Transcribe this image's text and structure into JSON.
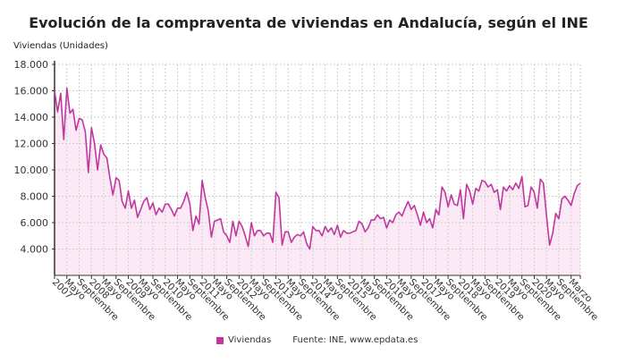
{
  "chart_data": {
    "type": "area",
    "title": "Evolución de la compraventa de viviendas en Andalucía, según el INE",
    "ylabel": "Viviendas (Unidades)",
    "xlabel": "",
    "ylim": [
      2000,
      18000
    ],
    "yticks": [
      "4.000",
      "6.000",
      "8.000",
      "10.000",
      "12.000",
      "14.000",
      "16.000",
      "18.000"
    ],
    "ytick_values": [
      4000,
      6000,
      8000,
      10000,
      12000,
      14000,
      16000,
      18000
    ],
    "x_start": "2007-01",
    "x_end": "2021-03",
    "xtick_labels": [
      "2007",
      "Mayo",
      "Septiembre",
      "2008",
      "Mayo",
      "Septiembre",
      "2009",
      "Mayo",
      "Septiembre",
      "2010",
      "Mayo",
      "Septiembre",
      "2011",
      "Mayo",
      "Septiembre",
      "2012",
      "Mayo",
      "Septiembre",
      "2013",
      "Mayo",
      "Septiembre",
      "2014",
      "Mayo",
      "Septiembre",
      "2015",
      "Mayo",
      "Septiembre",
      "2016",
      "Mayo",
      "Septiembre",
      "2017",
      "Mayo",
      "Septiembre",
      "2018",
      "Mayo",
      "Septiembre",
      "2019",
      "Mayo",
      "Septiembre",
      "2020",
      "Mayo",
      "Septiembre",
      "Marzo"
    ],
    "grid": true,
    "legend_position": "bottom",
    "series": [
      {
        "name": "Viviendas",
        "color": "#c2369f",
        "fill": "#fbe9f6",
        "values": [
          16000,
          14400,
          15800,
          12300,
          16200,
          14300,
          14600,
          13000,
          13900,
          13800,
          12900,
          9800,
          13200,
          12000,
          10000,
          11900,
          11200,
          10900,
          9400,
          8100,
          9400,
          9200,
          7600,
          7100,
          8400,
          7100,
          7700,
          6400,
          7000,
          7600,
          7900,
          7000,
          7500,
          6600,
          7100,
          6800,
          7400,
          7400,
          7000,
          6500,
          7100,
          7100,
          7600,
          8300,
          7400,
          5400,
          6500,
          5900,
          9200,
          7900,
          6900,
          4900,
          6100,
          6200,
          6300,
          5300,
          5000,
          4500,
          6100,
          5000,
          6100,
          5700,
          5000,
          4200,
          6000,
          5000,
          5400,
          5400,
          5000,
          5200,
          5200,
          4500,
          8300,
          7900,
          4300,
          5300,
          5300,
          4500,
          4900,
          5100,
          5000,
          5300,
          4400,
          4000,
          5700,
          5400,
          5400,
          5000,
          5700,
          5300,
          5600,
          5100,
          5800,
          4900,
          5400,
          5200,
          5200,
          5300,
          5400,
          6100,
          5900,
          5300,
          5600,
          6200,
          6200,
          6600,
          6300,
          6400,
          5600,
          6200,
          6000,
          6600,
          6800,
          6500,
          7100,
          7600,
          7000,
          7300,
          6600,
          5800,
          6800,
          6000,
          6300,
          5600,
          7000,
          6600,
          8700,
          8300,
          7200,
          8100,
          7400,
          7300,
          8500,
          6300,
          8900,
          8400,
          7400,
          8600,
          8400,
          9200,
          9100,
          8700,
          8900,
          8300,
          8500,
          7000,
          8700,
          8400,
          8800,
          8500,
          9000,
          8600,
          9500,
          7200,
          7300,
          8700,
          8300,
          7100,
          9300,
          9000,
          6500,
          4300,
          5200,
          6700,
          6300,
          7800,
          8000,
          7700,
          7300,
          8200,
          8800,
          9000
        ]
      }
    ],
    "legend": {
      "label": "Viviendas",
      "source": "Fuente: INE, www.epdata.es"
    }
  }
}
